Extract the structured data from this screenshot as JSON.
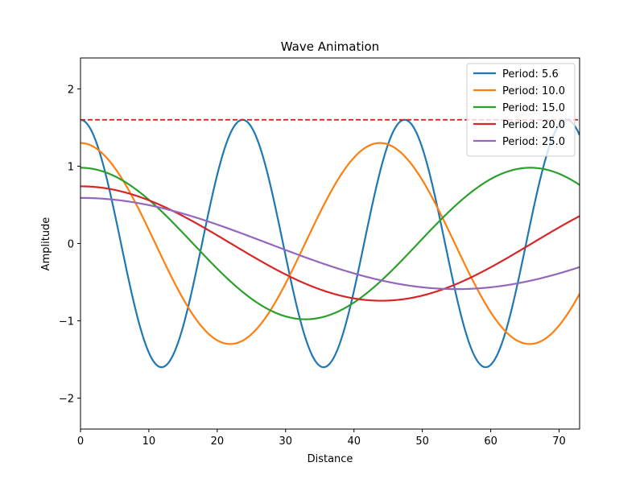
{
  "chart_data": {
    "type": "line",
    "title": "Wave Animation",
    "xlabel": "Distance",
    "ylabel": "Amplitude",
    "xlim": [
      0,
      73
    ],
    "ylim": [
      -2.4,
      2.4
    ],
    "xticks": [
      0,
      10,
      20,
      30,
      40,
      50,
      60,
      70
    ],
    "yticks": [
      -2,
      -1,
      0,
      1,
      2
    ],
    "ytick_labels": [
      "−2",
      "−1",
      "0",
      "1",
      "2"
    ],
    "grid": false,
    "legend_position": "top-right",
    "series": [
      {
        "name": "Period: 5.6",
        "color": "#1f77b4",
        "amplitude": 1.6,
        "wavelength": 23.7
      },
      {
        "name": "Period: 10.0",
        "color": "#ff7f0e",
        "amplitude": 1.3,
        "wavelength": 43.8
      },
      {
        "name": "Period: 15.0",
        "color": "#2ca02c",
        "amplitude": 0.98,
        "wavelength": 65.8
      },
      {
        "name": "Period: 20.0",
        "color": "#d62728",
        "amplitude": 0.74,
        "wavelength": 88
      },
      {
        "name": "Period: 25.0",
        "color": "#9467bd",
        "amplitude": 0.59,
        "wavelength": 110
      }
    ],
    "reference_line": {
      "y": 1.6,
      "color": "#d62728",
      "style": "dashed"
    }
  }
}
